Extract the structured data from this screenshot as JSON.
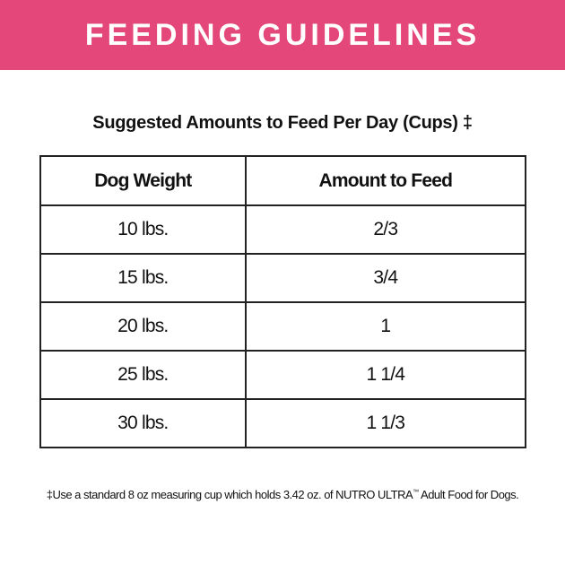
{
  "header": {
    "title": "FEEDING GUIDELINES"
  },
  "subtitle": "Suggested Amounts to Feed Per Day (Cups) ‡",
  "table": {
    "columns": [
      "Dog Weight",
      "Amount to Feed"
    ],
    "rows": [
      [
        "10 lbs.",
        "2/3"
      ],
      [
        "15 lbs.",
        "3/4"
      ],
      [
        "20 lbs.",
        "1"
      ],
      [
        "25 lbs.",
        "1 1/4"
      ],
      [
        "30 lbs.",
        "1 1/3"
      ]
    ]
  },
  "footnote": {
    "text_before": "‡Use a standard 8 oz measuring cup which holds 3.42 oz. of NUTRO ULTRA",
    "mark": "™",
    "text_after": " Adult Food for Dogs."
  }
}
